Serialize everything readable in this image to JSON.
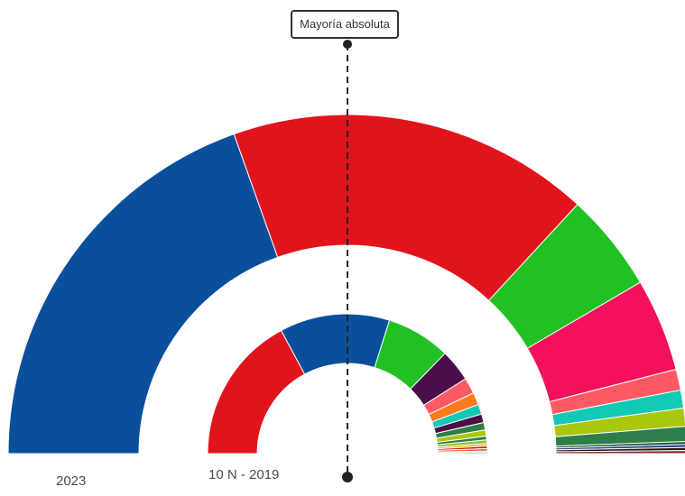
{
  "majority_label": "Mayoría absoluta",
  "chart_data": [
    {
      "type": "pie",
      "variant": "half-donut",
      "label": "2023",
      "total_seats": 350,
      "slices": [
        {
          "value": 137,
          "color": "#0a4f9c"
        },
        {
          "value": 121,
          "color": "#e1141c"
        },
        {
          "value": 33,
          "color": "#21c124"
        },
        {
          "value": 31,
          "color": "#f2115a"
        },
        {
          "value": 7,
          "color": "#ff5a64"
        },
        {
          "value": 6,
          "color": "#12c9b6"
        },
        {
          "value": 6,
          "color": "#aac60f"
        },
        {
          "value": 5,
          "color": "#2e7d4a"
        },
        {
          "value": 1,
          "color": "#0e5a2a"
        },
        {
          "value": 1,
          "color": "#3a3a8c"
        },
        {
          "value": 1,
          "color": "#1a1a1a"
        },
        {
          "value": 1,
          "color": "#8b2e2e"
        }
      ]
    },
    {
      "type": "pie",
      "variant": "half-donut",
      "label": "10 N - 2019",
      "total_seats": 350,
      "slices": [
        {
          "value": 120,
          "color": "#e1141c"
        },
        {
          "value": 89,
          "color": "#0a4f9c"
        },
        {
          "value": 52,
          "color": "#21c124"
        },
        {
          "value": 26,
          "color": "#4a0f4a"
        },
        {
          "value": 13,
          "color": "#ff5a64"
        },
        {
          "value": 10,
          "color": "#ff7a1a"
        },
        {
          "value": 8,
          "color": "#12c9b6"
        },
        {
          "value": 7,
          "color": "#4a0f4a"
        },
        {
          "value": 6,
          "color": "#2e7d4a"
        },
        {
          "value": 5,
          "color": "#aac60f"
        },
        {
          "value": 3,
          "color": "#2e7d4a"
        },
        {
          "value": 3,
          "color": "#8cc63f"
        },
        {
          "value": 2,
          "color": "#ffb000"
        },
        {
          "value": 2,
          "color": "#bb1e1e"
        },
        {
          "value": 2,
          "color": "#f26522"
        },
        {
          "value": 1,
          "color": "#0e5a2a"
        },
        {
          "value": 1,
          "color": "#0070b8"
        }
      ]
    }
  ]
}
